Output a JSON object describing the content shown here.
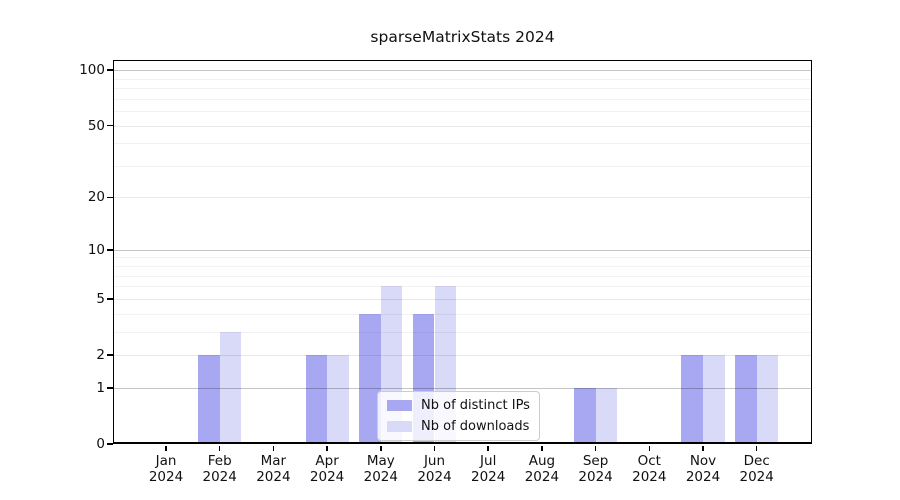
{
  "chart_data": {
    "type": "bar",
    "title": "sparseMatrixStats 2024",
    "categories": [
      "Jan",
      "Feb",
      "Mar",
      "Apr",
      "May",
      "Jun",
      "Jul",
      "Aug",
      "Sep",
      "Oct",
      "Nov",
      "Dec"
    ],
    "year": "2024",
    "series": [
      {
        "name": "Nb of distinct IPs",
        "color": "#a8a8f2",
        "values": [
          0,
          2,
          0,
          2,
          4,
          4,
          0,
          0,
          1,
          0,
          2,
          2
        ]
      },
      {
        "name": "Nb of downloads",
        "color": "#d9d9f8",
        "values": [
          0,
          3,
          0,
          2,
          6,
          6,
          0,
          0,
          1,
          0,
          2,
          2
        ]
      }
    ],
    "xlabel": "",
    "ylabel": "",
    "y_axis": {
      "scale": "log1p",
      "ticks": [
        0,
        1,
        2,
        5,
        10,
        20,
        50,
        100
      ],
      "max": 113.5,
      "strong_gridlines": [
        1,
        10,
        100
      ],
      "light_gridlines": [
        2,
        5,
        20,
        50
      ],
      "minor_gridlines": [
        3,
        4,
        6,
        7,
        8,
        9,
        30,
        40,
        60,
        70,
        80,
        90
      ]
    },
    "legend": {
      "position": "bottom-center"
    },
    "grid": true
  }
}
